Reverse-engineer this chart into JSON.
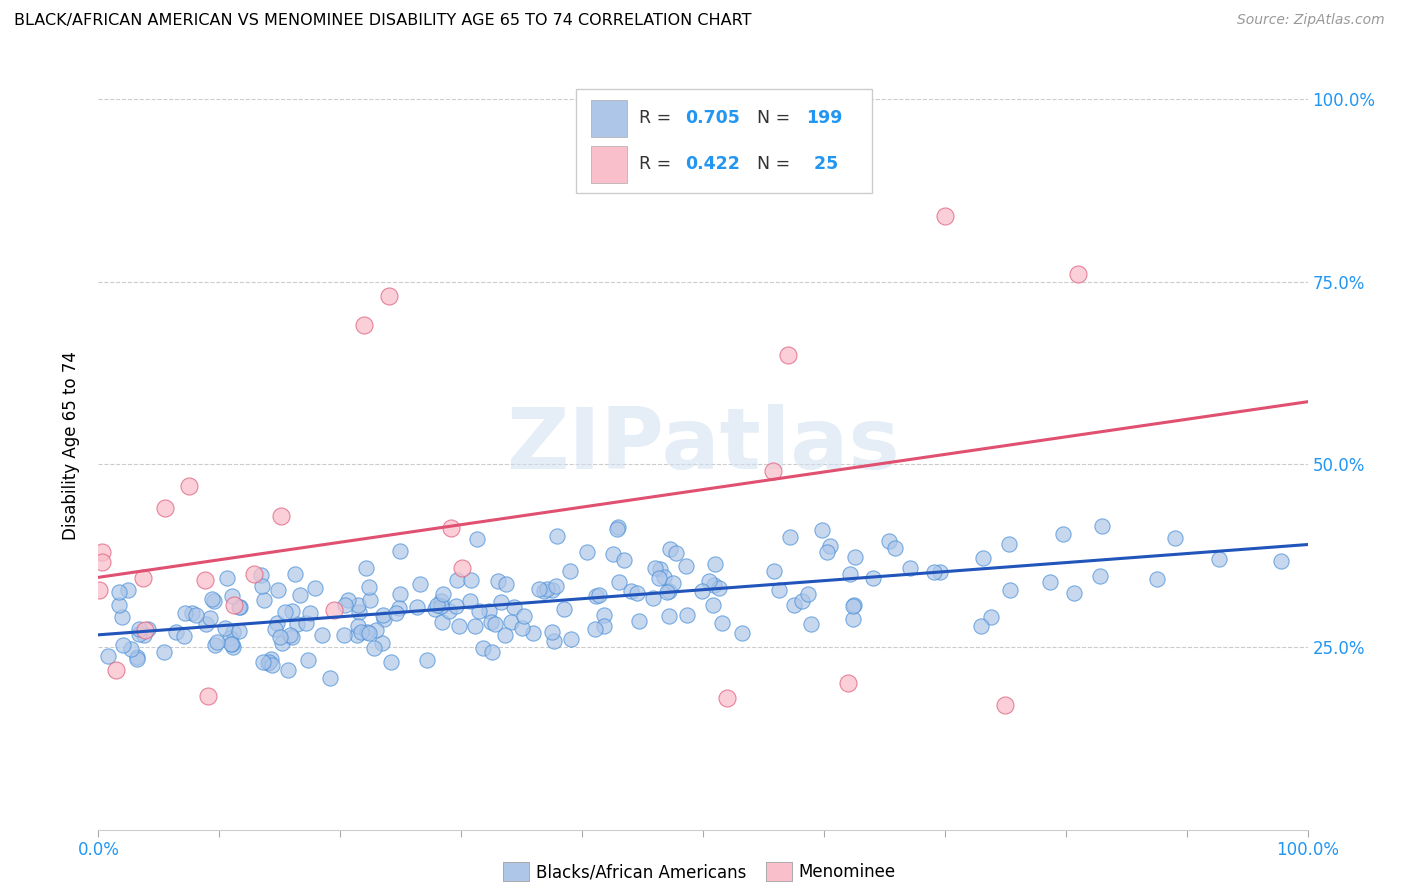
{
  "title": "BLACK/AFRICAN AMERICAN VS MENOMINEE DISABILITY AGE 65 TO 74 CORRELATION CHART",
  "source": "Source: ZipAtlas.com",
  "ylabel": "Disability Age 65 to 74",
  "legend_label1": "Blacks/African Americans",
  "legend_label2": "Menominee",
  "color_blue_fill": "#aec6e8",
  "color_blue_edge": "#4a90d9",
  "color_blue_line": "#2255bb",
  "color_pink_fill": "#f9c0cb",
  "color_pink_edge": "#e06080",
  "color_pink_line": "#e05070",
  "color_text_blue": "#2196F3",
  "color_grid": "#cccccc",
  "background_color": "#ffffff",
  "watermark": "ZIPatlas",
  "R1": 0.705,
  "N1": 199,
  "R2": 0.422,
  "N2": 25,
  "seed1": 42,
  "seed2": 99,
  "xlim": [
    0.0,
    1.0
  ],
  "ylim": [
    0.0,
    1.05
  ],
  "blue_intercept": 0.265,
  "blue_slope": 0.115,
  "pink_intercept": 0.3,
  "pink_slope": 0.245
}
